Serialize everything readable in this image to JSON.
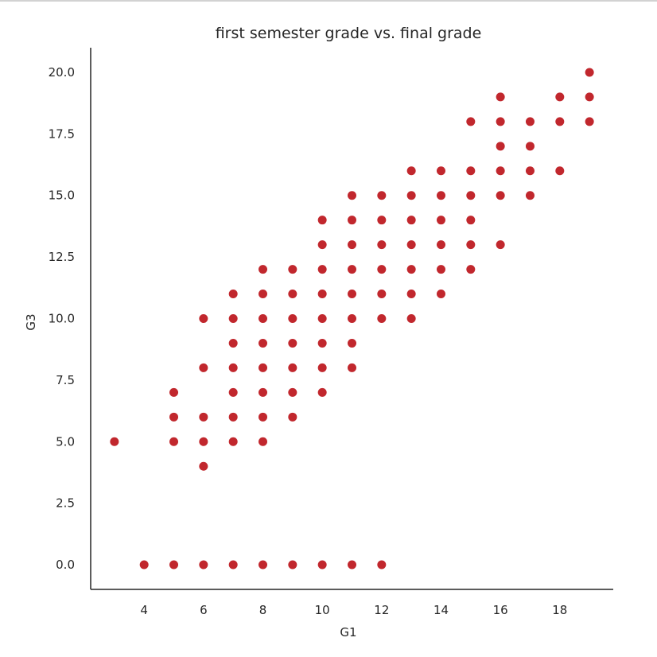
{
  "chart_data": {
    "type": "scatter",
    "title": "first semester grade vs. final grade",
    "xlabel": "G1",
    "ylabel": "G3",
    "xlim": [
      2.2,
      19.8
    ],
    "ylim": [
      -1.0,
      21.0
    ],
    "xticks": [
      4,
      6,
      8,
      10,
      12,
      14,
      16,
      18
    ],
    "yticks": [
      0.0,
      2.5,
      5.0,
      7.5,
      10.0,
      12.5,
      15.0,
      17.5,
      20.0
    ],
    "xtick_labels": [
      "4",
      "6",
      "8",
      "10",
      "12",
      "14",
      "16",
      "18"
    ],
    "ytick_labels": [
      "0.0",
      "2.5",
      "5.0",
      "7.5",
      "10.0",
      "12.5",
      "15.0",
      "17.5",
      "20.0"
    ],
    "grid": false,
    "color": "#c1272d",
    "points": [
      [
        3,
        5
      ],
      [
        4,
        0
      ],
      [
        5,
        0
      ],
      [
        5,
        5
      ],
      [
        5,
        6
      ],
      [
        5,
        7
      ],
      [
        6,
        0
      ],
      [
        6,
        4
      ],
      [
        6,
        5
      ],
      [
        6,
        6
      ],
      [
        6,
        8
      ],
      [
        6,
        10
      ],
      [
        7,
        0
      ],
      [
        7,
        5
      ],
      [
        7,
        6
      ],
      [
        7,
        7
      ],
      [
        7,
        8
      ],
      [
        7,
        9
      ],
      [
        7,
        10
      ],
      [
        7,
        11
      ],
      [
        8,
        0
      ],
      [
        8,
        5
      ],
      [
        8,
        6
      ],
      [
        8,
        7
      ],
      [
        8,
        8
      ],
      [
        8,
        9
      ],
      [
        8,
        10
      ],
      [
        8,
        11
      ],
      [
        8,
        12
      ],
      [
        9,
        0
      ],
      [
        9,
        6
      ],
      [
        9,
        7
      ],
      [
        9,
        8
      ],
      [
        9,
        9
      ],
      [
        9,
        10
      ],
      [
        9,
        11
      ],
      [
        9,
        12
      ],
      [
        10,
        0
      ],
      [
        10,
        7
      ],
      [
        10,
        8
      ],
      [
        10,
        9
      ],
      [
        10,
        10
      ],
      [
        10,
        11
      ],
      [
        10,
        12
      ],
      [
        10,
        13
      ],
      [
        10,
        14
      ],
      [
        11,
        0
      ],
      [
        11,
        8
      ],
      [
        11,
        9
      ],
      [
        11,
        10
      ],
      [
        11,
        11
      ],
      [
        11,
        12
      ],
      [
        11,
        13
      ],
      [
        11,
        14
      ],
      [
        11,
        15
      ],
      [
        12,
        0
      ],
      [
        12,
        10
      ],
      [
        12,
        11
      ],
      [
        12,
        12
      ],
      [
        12,
        13
      ],
      [
        12,
        14
      ],
      [
        12,
        15
      ],
      [
        13,
        10
      ],
      [
        13,
        11
      ],
      [
        13,
        12
      ],
      [
        13,
        13
      ],
      [
        13,
        14
      ],
      [
        13,
        15
      ],
      [
        13,
        16
      ],
      [
        14,
        11
      ],
      [
        14,
        12
      ],
      [
        14,
        13
      ],
      [
        14,
        14
      ],
      [
        14,
        15
      ],
      [
        14,
        16
      ],
      [
        15,
        12
      ],
      [
        15,
        13
      ],
      [
        15,
        14
      ],
      [
        15,
        15
      ],
      [
        15,
        16
      ],
      [
        15,
        18
      ],
      [
        16,
        13
      ],
      [
        16,
        15
      ],
      [
        16,
        16
      ],
      [
        16,
        17
      ],
      [
        16,
        18
      ],
      [
        16,
        19
      ],
      [
        17,
        15
      ],
      [
        17,
        16
      ],
      [
        17,
        17
      ],
      [
        17,
        18
      ],
      [
        18,
        16
      ],
      [
        18,
        18
      ],
      [
        18,
        19
      ],
      [
        19,
        18
      ],
      [
        19,
        19
      ],
      [
        19,
        20
      ]
    ]
  }
}
